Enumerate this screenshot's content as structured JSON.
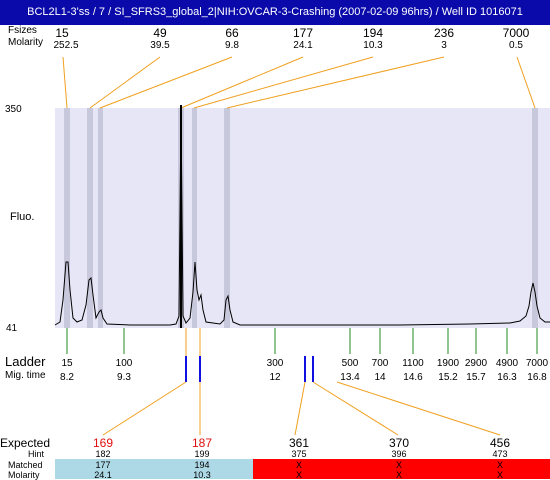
{
  "title": "BCL2L1-3'ss / 7 / SI_SFRS3_global_2|NIH:OVCAR-3-Crashing (2007-02-09 96hrs) / Well ID 1016071",
  "top_labels": {
    "size": "Fsizes",
    "molarity": "Molarity"
  },
  "peaks": [
    {
      "size": "15",
      "molarity": "252.5"
    },
    {
      "size": "49",
      "molarity": "39.5"
    },
    {
      "size": "66",
      "molarity": "9.8"
    },
    {
      "size": "177",
      "molarity": "24.1"
    },
    {
      "size": "194",
      "molarity": "10.3"
    },
    {
      "size": "236",
      "molarity": "3"
    },
    {
      "size": "7000",
      "molarity": "0.5"
    }
  ],
  "y_axis": {
    "top": "350",
    "bottom": "41",
    "label": "Fluo."
  },
  "ladder": {
    "label": "Ladder",
    "mig_label": "Mig. time",
    "items": [
      {
        "size": "15",
        "time": "8.2"
      },
      {
        "size": "100",
        "time": "9.3"
      },
      {
        "size": "300",
        "time": "12"
      },
      {
        "size": "500",
        "time": "13.4"
      },
      {
        "size": "700",
        "time": "14"
      },
      {
        "size": "1100",
        "time": "14.6"
      },
      {
        "size": "1900",
        "time": "15.2"
      },
      {
        "size": "2900",
        "time": "15.7"
      },
      {
        "size": "4900",
        "time": "16.3"
      },
      {
        "size": "7000",
        "time": "16.8"
      }
    ]
  },
  "expected": {
    "labels": {
      "expected": "Expected",
      "hint": "Hint",
      "matched": "Matched",
      "molarity": "Molarity"
    },
    "items": [
      {
        "expected": "169",
        "hint": "182",
        "matched": "177",
        "molarity": "24.1",
        "highlight": true,
        "status": "matched"
      },
      {
        "expected": "187",
        "hint": "199",
        "matched": "194",
        "molarity": "10.3",
        "highlight": true,
        "status": "matched"
      },
      {
        "expected": "361",
        "hint": "375",
        "matched": "X",
        "molarity": "X",
        "highlight": false,
        "status": "missing"
      },
      {
        "expected": "370",
        "hint": "396",
        "matched": "X",
        "molarity": "X",
        "highlight": false,
        "status": "missing"
      },
      {
        "expected": "456",
        "hint": "473",
        "matched": "X",
        "molarity": "X",
        "highlight": false,
        "status": "missing"
      }
    ]
  },
  "colors": {
    "title_bg": "#0a0aaa",
    "plot_bg": "#e6e6f6",
    "band": "#c8c8dc",
    "connector": "#f0a020",
    "ladder_tick": "#228b22",
    "marker": "#1010e0",
    "matched_bg": "#add8e6",
    "missing_bg": "#ff0000",
    "expected_highlight": "#e01010"
  }
}
